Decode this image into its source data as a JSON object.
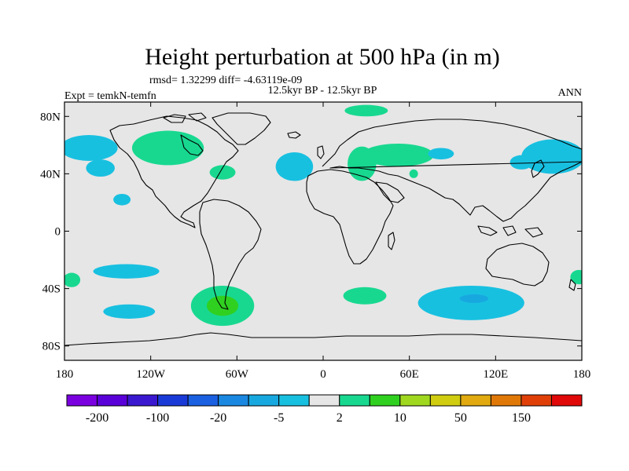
{
  "chart_data": {
    "type": "contour map",
    "title": "Height perturbation at 500 hPa (in m)",
    "stats": "rmsd= 1.32299 diff= -4.63119e-09",
    "left_label": "Expt = temkN-temfn",
    "center_label": "12.5kyr BP - 12.5kyr BP",
    "right_label": "ANN",
    "x_range": [
      -180,
      180
    ],
    "y_range": [
      -90,
      90
    ],
    "x_ticks": [
      {
        "value": -180,
        "label": "180"
      },
      {
        "value": -120,
        "label": "120W"
      },
      {
        "value": -60,
        "label": "60W"
      },
      {
        "value": 0,
        "label": "0"
      },
      {
        "value": 60,
        "label": "60E"
      },
      {
        "value": 120,
        "label": "120E"
      },
      {
        "value": 180,
        "label": "180"
      }
    ],
    "y_ticks": [
      {
        "value": 80,
        "label": "80N"
      },
      {
        "value": 40,
        "label": "40N"
      },
      {
        "value": 0,
        "label": "0"
      },
      {
        "value": -40,
        "label": "40S"
      },
      {
        "value": -80,
        "label": "80S"
      }
    ],
    "colorbar": {
      "colors": [
        "#7a00e0",
        "#5a00d8",
        "#3a18d0",
        "#1a3ad8",
        "#1a60e0",
        "#1a88e0",
        "#18a8e0",
        "#18c0e0",
        "#e6e6e6",
        "#18d890",
        "#30d020",
        "#a0d820",
        "#d0cc10",
        "#e0aa10",
        "#e07808",
        "#e04008",
        "#e00808"
      ],
      "labels": [
        "-200",
        "-100",
        "-20",
        "-5",
        "2",
        "10",
        "50",
        "150"
      ],
      "label_positions": [
        1,
        3,
        5,
        7,
        9,
        11,
        13,
        15
      ]
    },
    "anomalies": [
      {
        "lon": -163,
        "lat": 58,
        "rx": 20,
        "ry": 9,
        "color": "#18c0e0"
      },
      {
        "lon": -155,
        "lat": 44,
        "rx": 10,
        "ry": 6,
        "color": "#18c0e0"
      },
      {
        "lon": -108,
        "lat": 58,
        "rx": 25,
        "ry": 12,
        "color": "#18d890"
      },
      {
        "lon": -140,
        "lat": 22,
        "rx": 6,
        "ry": 4,
        "color": "#18c0e0"
      },
      {
        "lon": -70,
        "lat": 41,
        "rx": 9,
        "ry": 5,
        "color": "#18d890"
      },
      {
        "lon": -20,
        "lat": 45,
        "rx": 13,
        "ry": 10,
        "color": "#18c0e0"
      },
      {
        "lon": 27,
        "lat": 47,
        "rx": 10,
        "ry": 12,
        "color": "#18d890"
      },
      {
        "lon": 52,
        "lat": 53,
        "rx": 25,
        "ry": 8,
        "color": "#18d890"
      },
      {
        "lon": 30,
        "lat": 84,
        "rx": 15,
        "ry": 4,
        "color": "#18d890"
      },
      {
        "lon": 63,
        "lat": 40,
        "rx": 3,
        "ry": 3,
        "color": "#18d890"
      },
      {
        "lon": 82,
        "lat": 54,
        "rx": 9,
        "ry": 4,
        "color": "#18c0e0"
      },
      {
        "lon": 160,
        "lat": 52,
        "rx": 22,
        "ry": 12,
        "color": "#18c0e0"
      },
      {
        "lon": 138,
        "lat": 48,
        "rx": 8,
        "ry": 5,
        "color": "#18c0e0"
      },
      {
        "lon": -175,
        "lat": -34,
        "rx": 6,
        "ry": 5,
        "color": "#18d890"
      },
      {
        "lon": -137,
        "lat": -28,
        "rx": 23,
        "ry": 5,
        "color": "#18c0e0"
      },
      {
        "lon": -135,
        "lat": -56,
        "rx": 18,
        "ry": 5,
        "color": "#18c0e0"
      },
      {
        "lon": -70,
        "lat": -52,
        "rx": 22,
        "ry": 14,
        "color": "#18d890"
      },
      {
        "lon": -70,
        "lat": -52,
        "rx": 11,
        "ry": 7,
        "color": "#30d020"
      },
      {
        "lon": 29,
        "lat": -45,
        "rx": 15,
        "ry": 6,
        "color": "#18d890"
      },
      {
        "lon": 103,
        "lat": -50,
        "rx": 37,
        "ry": 12,
        "color": "#18c0e0"
      },
      {
        "lon": 105,
        "lat": -47,
        "rx": 10,
        "ry": 3,
        "color": "#18a8e0"
      },
      {
        "lon": 178,
        "lat": -32,
        "rx": 6,
        "ry": 5,
        "color": "#18d890"
      }
    ]
  }
}
